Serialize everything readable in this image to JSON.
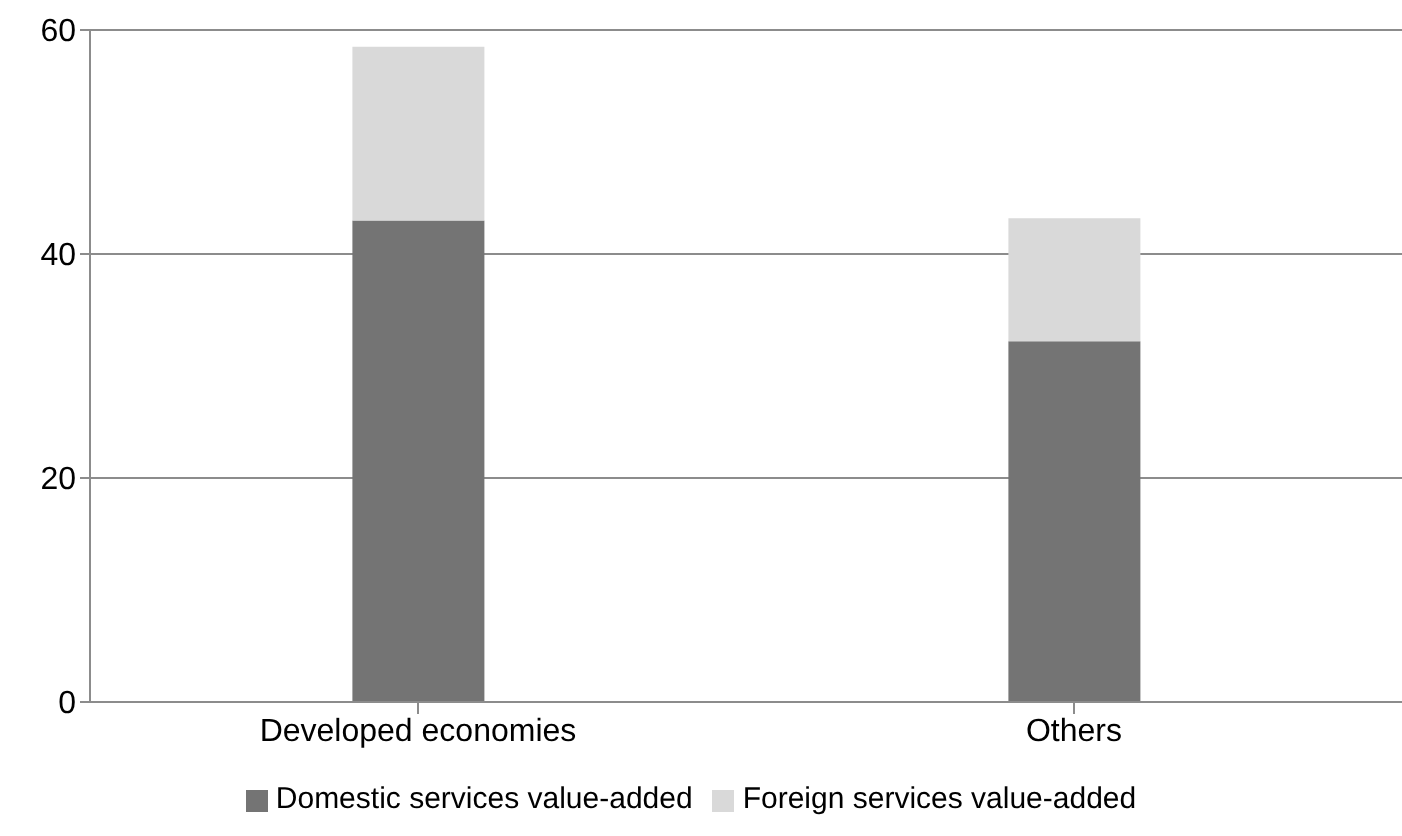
{
  "chart_data": {
    "type": "bar",
    "stacked": true,
    "categories": [
      "Developed economies",
      "Others"
    ],
    "series": [
      {
        "name": "Domestic services value-added",
        "color": "#747474",
        "values": [
          43,
          32.2
        ]
      },
      {
        "name": "Foreign services value-added",
        "color": "#d9d9d9",
        "values": [
          15.5,
          11
        ]
      }
    ],
    "ylim": [
      0,
      60
    ],
    "yticks": [
      0,
      20,
      40,
      60
    ],
    "grid": "y",
    "legend": "bottom"
  }
}
